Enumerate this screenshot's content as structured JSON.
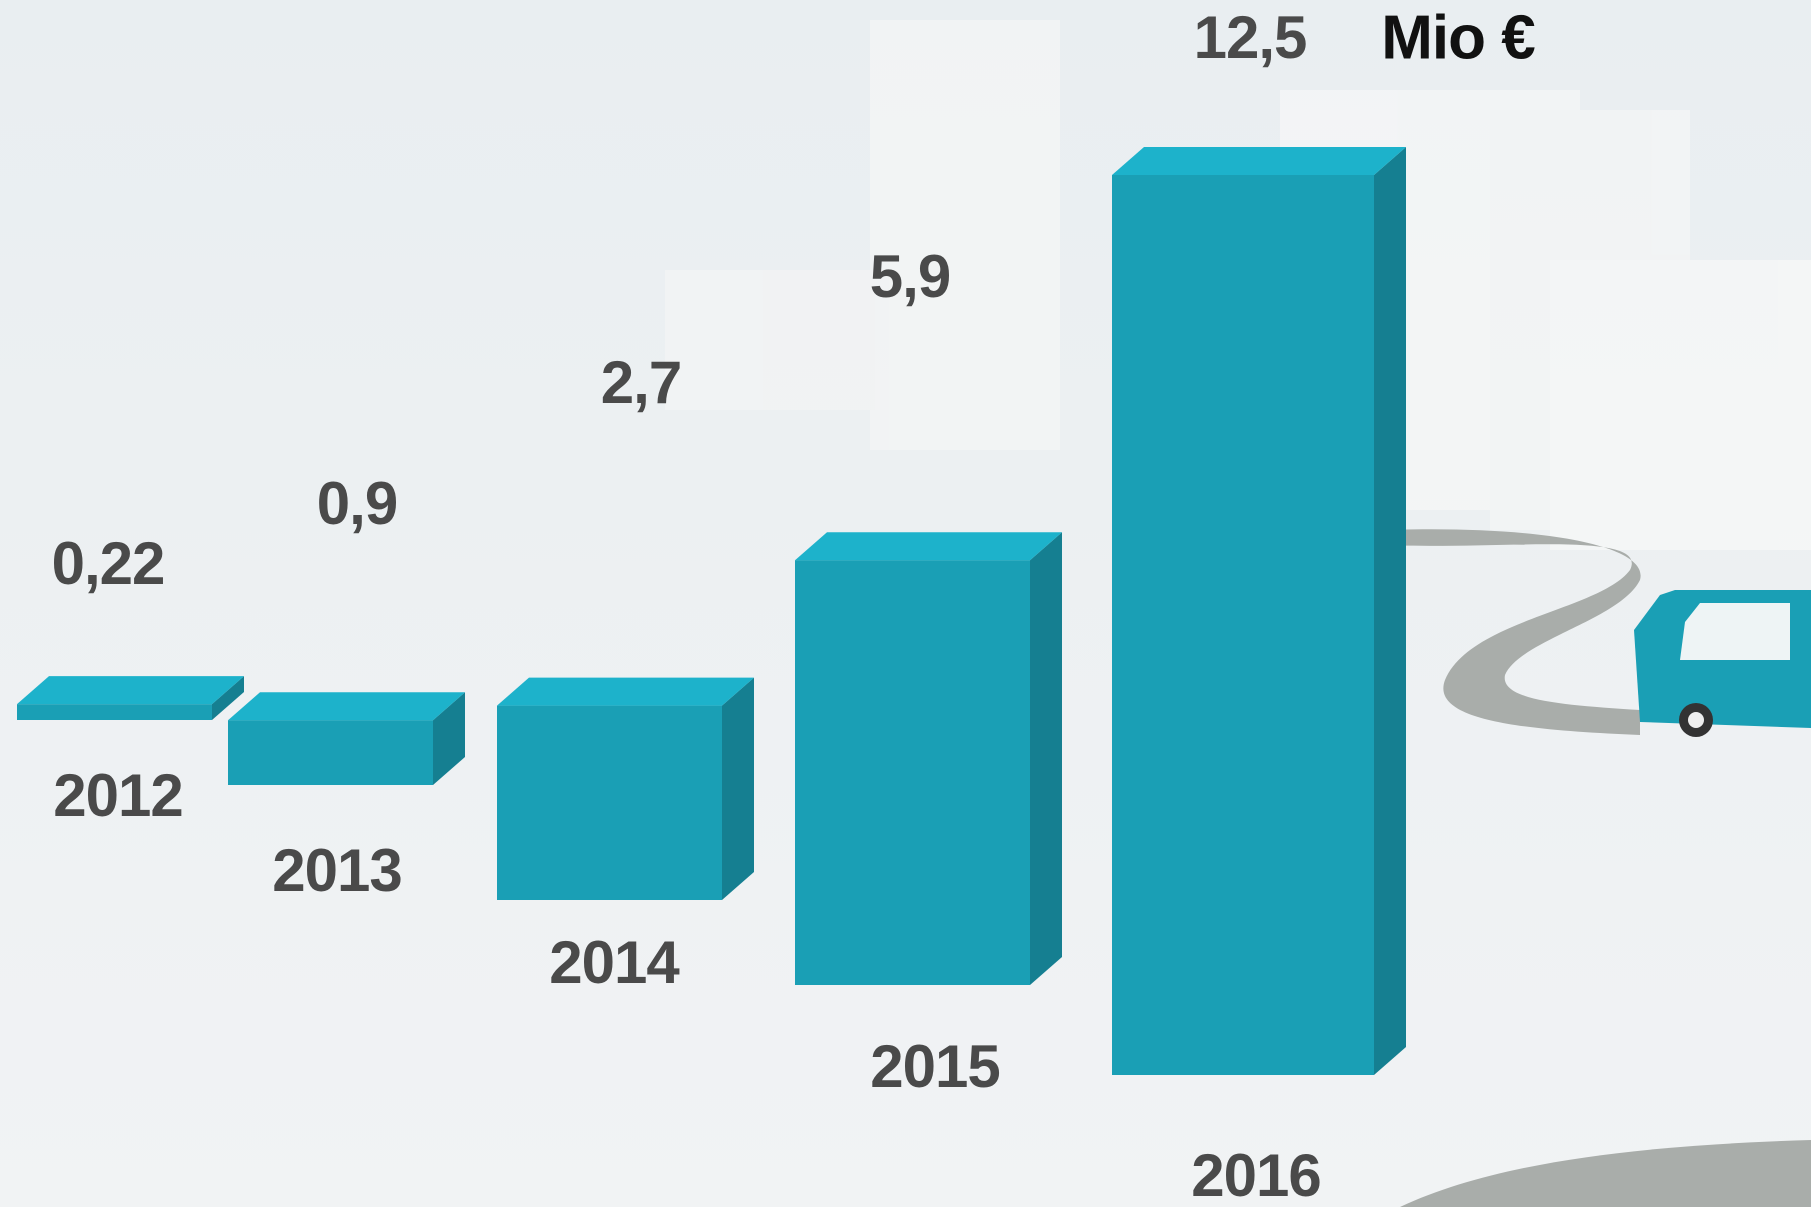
{
  "chart_data": {
    "type": "bar",
    "categories": [
      "2012",
      "2013",
      "2014",
      "2015",
      "2016"
    ],
    "values": [
      0.22,
      0.9,
      2.7,
      5.9,
      12.5
    ],
    "value_labels": [
      "0,22",
      "0,9",
      "2,7",
      "5,9",
      "12,5"
    ],
    "unit": "Mio €",
    "color": "#1a9fb5"
  }
}
